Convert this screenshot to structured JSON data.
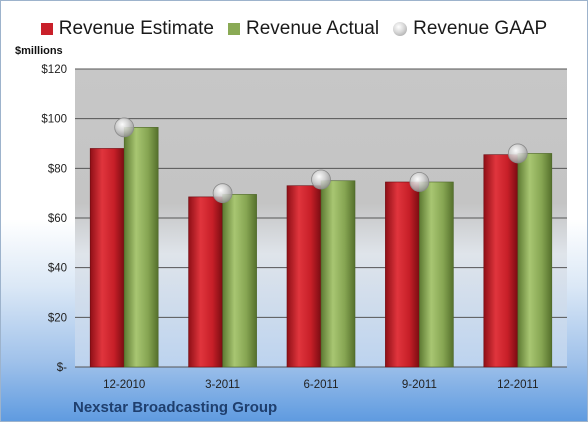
{
  "chart_data": {
    "type": "bar",
    "categories": [
      "12-2010",
      "3-2011",
      "6-2011",
      "9-2011",
      "12-2011"
    ],
    "series": [
      {
        "name": "Revenue Estimate",
        "values": [
          88,
          68.5,
          73,
          74.5,
          85.5
        ],
        "color": "#c9202a"
      },
      {
        "name": "Revenue Actual",
        "values": [
          96.5,
          69.5,
          75,
          74.5,
          86
        ],
        "color": "#8aaa55"
      },
      {
        "name": "Revenue GAAP",
        "values": [
          96.5,
          70,
          75.5,
          74.5,
          86
        ],
        "marker": "circle"
      }
    ],
    "ylabel": "$millions",
    "ylim": [
      0,
      120
    ],
    "y_ticks": [
      0,
      20,
      40,
      60,
      80,
      100,
      120
    ],
    "y_tick_labels": [
      "$-",
      "$20",
      "$40",
      "$60",
      "$80",
      "$100",
      "$120"
    ],
    "grid": true,
    "legend_position": "top",
    "caption": "Nexstar Broadcasting Group"
  }
}
